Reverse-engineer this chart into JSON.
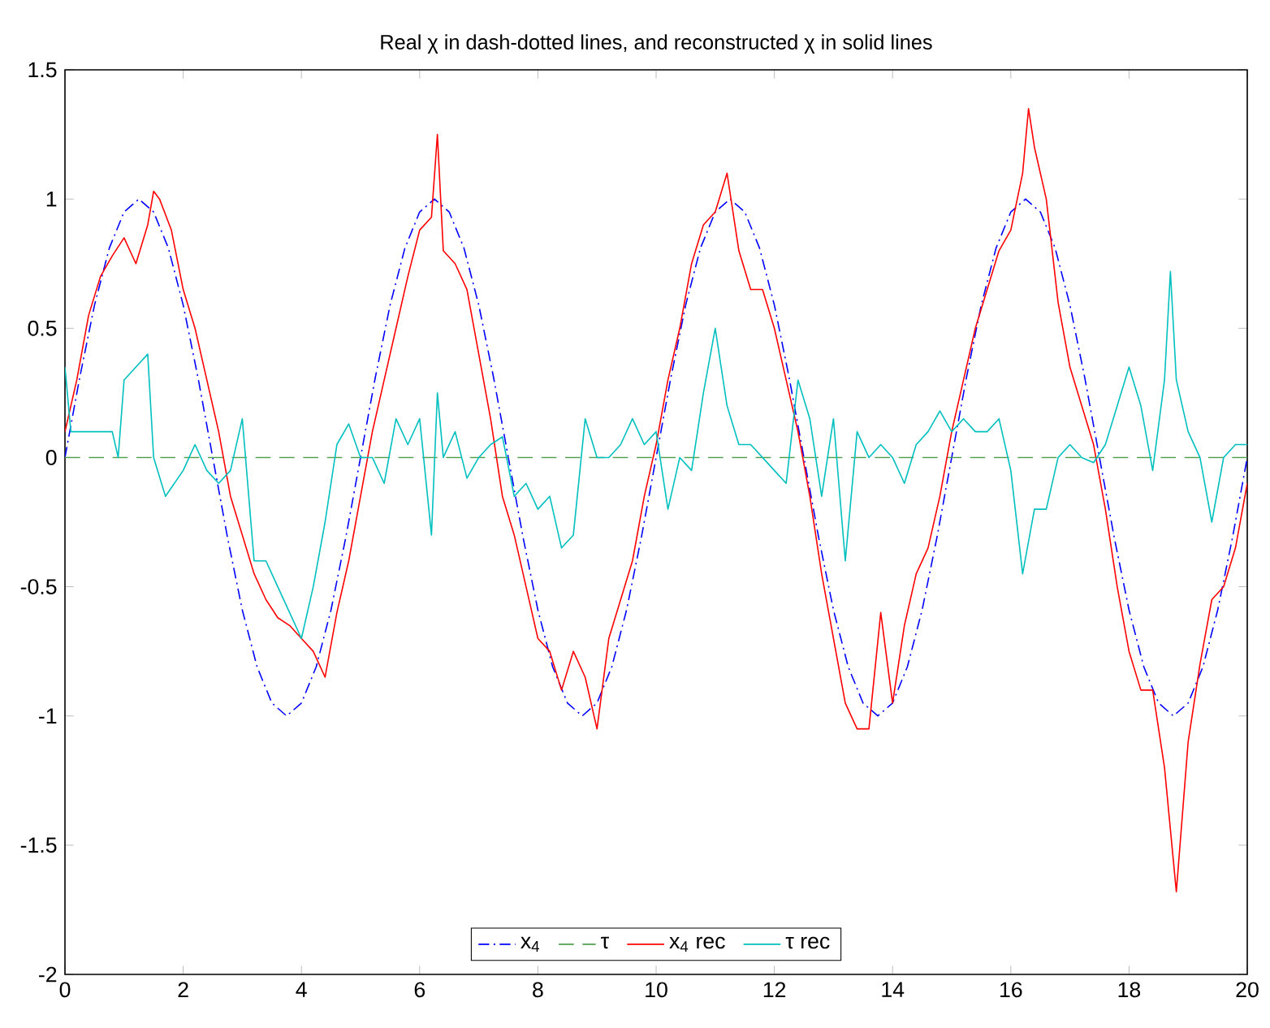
{
  "chart_data": {
    "type": "line",
    "title": "Real χ in dash-dotted lines, and reconstructed χ in solid lines",
    "xlim": [
      0,
      20
    ],
    "ylim": [
      -2,
      1.5
    ],
    "xticks": [
      0,
      2,
      4,
      6,
      8,
      10,
      12,
      14,
      16,
      18,
      20
    ],
    "yticks": [
      -2,
      -1.5,
      -1,
      -0.5,
      0,
      0.5,
      1,
      1.5
    ],
    "grid": false,
    "legend": "bottom",
    "marker": "none",
    "series": [
      {
        "name": "x$_{4}$",
        "color": "#0000ff",
        "line_style": "dashdot",
        "x": [
          0,
          0.25,
          0.5,
          0.75,
          1,
          1.25,
          1.5,
          1.75,
          2,
          2.25,
          2.5,
          2.75,
          3,
          3.25,
          3.5,
          3.75,
          4,
          4.25,
          4.5,
          4.75,
          5,
          5.25,
          5.5,
          5.75,
          6,
          6.25,
          6.5,
          6.75,
          7,
          7.25,
          7.5,
          7.75,
          8,
          8.25,
          8.5,
          8.75,
          9,
          9.25,
          9.5,
          9.75,
          10,
          10.25,
          10.5,
          10.75,
          11,
          11.25,
          11.5,
          11.75,
          12,
          12.25,
          12.5,
          12.75,
          13,
          13.25,
          13.5,
          13.75,
          14,
          14.25,
          14.5,
          14.75,
          15,
          15.25,
          15.5,
          15.75,
          16,
          16.25,
          16.5,
          16.75,
          17,
          17.25,
          17.5,
          17.75,
          18,
          18.25,
          18.5,
          18.75,
          19,
          19.25,
          19.5,
          19.75,
          20
        ],
        "values": [
          0,
          0.31,
          0.59,
          0.81,
          0.95,
          1,
          0.95,
          0.81,
          0.59,
          0.31,
          0,
          -0.31,
          -0.59,
          -0.81,
          -0.95,
          -1,
          -0.95,
          -0.81,
          -0.59,
          -0.31,
          0,
          0.31,
          0.59,
          0.81,
          0.95,
          1,
          0.95,
          0.81,
          0.59,
          0.31,
          0,
          -0.31,
          -0.59,
          -0.81,
          -0.95,
          -1,
          -0.95,
          -0.81,
          -0.59,
          -0.31,
          0,
          0.31,
          0.59,
          0.81,
          0.95,
          1,
          0.95,
          0.81,
          0.59,
          0.31,
          0,
          -0.31,
          -0.59,
          -0.81,
          -0.95,
          -1,
          -0.95,
          -0.81,
          -0.59,
          -0.31,
          0,
          0.31,
          0.59,
          0.81,
          0.95,
          1,
          0.95,
          0.81,
          0.59,
          0.31,
          0,
          -0.31,
          -0.59,
          -0.81,
          -0.95,
          -1,
          -0.95,
          -0.81,
          -0.59,
          -0.31,
          0
        ]
      },
      {
        "name": "τ",
        "color": "#4f9f4f",
        "line_style": "dashed",
        "x": [
          0,
          20
        ],
        "values": [
          0,
          0
        ]
      },
      {
        "name": "x$_{4}$ rec",
        "color": "#ff0000",
        "line_style": "solid",
        "x": [
          0,
          0.2,
          0.4,
          0.6,
          0.8,
          1.0,
          1.2,
          1.4,
          1.5,
          1.6,
          1.8,
          2.0,
          2.2,
          2.4,
          2.6,
          2.8,
          3.0,
          3.2,
          3.4,
          3.6,
          3.8,
          4.0,
          4.2,
          4.4,
          4.6,
          4.8,
          5.0,
          5.2,
          5.4,
          5.6,
          5.8,
          6.0,
          6.2,
          6.3,
          6.4,
          6.6,
          6.8,
          7.0,
          7.2,
          7.4,
          7.6,
          7.8,
          8.0,
          8.2,
          8.4,
          8.6,
          8.8,
          9.0,
          9.2,
          9.4,
          9.6,
          9.8,
          10.0,
          10.2,
          10.4,
          10.6,
          10.8,
          11.0,
          11.2,
          11.4,
          11.6,
          11.8,
          12.0,
          12.2,
          12.4,
          12.6,
          12.8,
          13.0,
          13.2,
          13.4,
          13.6,
          13.8,
          14.0,
          14.2,
          14.4,
          14.6,
          14.8,
          15.0,
          15.2,
          15.4,
          15.6,
          15.8,
          16.0,
          16.2,
          16.3,
          16.4,
          16.6,
          16.8,
          17.0,
          17.2,
          17.4,
          17.6,
          17.8,
          18.0,
          18.2,
          18.4,
          18.6,
          18.8,
          19.0,
          19.2,
          19.4,
          19.6,
          19.8,
          20.0
        ],
        "values": [
          0.1,
          0.3,
          0.55,
          0.7,
          0.78,
          0.85,
          0.75,
          0.9,
          1.03,
          1.0,
          0.88,
          0.65,
          0.5,
          0.3,
          0.1,
          -0.15,
          -0.3,
          -0.45,
          -0.55,
          -0.62,
          -0.65,
          -0.7,
          -0.75,
          -0.85,
          -0.6,
          -0.4,
          -0.15,
          0.1,
          0.3,
          0.5,
          0.7,
          0.88,
          0.93,
          1.25,
          0.8,
          0.75,
          0.65,
          0.4,
          0.15,
          -0.15,
          -0.3,
          -0.5,
          -0.7,
          -0.75,
          -0.9,
          -0.75,
          -0.85,
          -1.05,
          -0.7,
          -0.55,
          -0.4,
          -0.15,
          0.05,
          0.3,
          0.5,
          0.75,
          0.9,
          0.95,
          1.1,
          0.8,
          0.65,
          0.65,
          0.5,
          0.3,
          0.1,
          -0.15,
          -0.45,
          -0.7,
          -0.95,
          -1.05,
          -1.05,
          -0.6,
          -0.95,
          -0.65,
          -0.45,
          -0.35,
          -0.15,
          0.1,
          0.3,
          0.5,
          0.65,
          0.8,
          0.88,
          1.1,
          1.35,
          1.2,
          1.0,
          0.6,
          0.35,
          0.2,
          0.05,
          -0.2,
          -0.5,
          -0.75,
          -0.9,
          -0.9,
          -1.2,
          -1.68,
          -1.1,
          -0.8,
          -0.55,
          -0.5,
          -0.35,
          -0.1
        ]
      },
      {
        "name": "τ rec",
        "color": "#00bfbf",
        "line_style": "solid",
        "x": [
          0,
          0.1,
          0.4,
          0.8,
          0.9,
          1.0,
          1.2,
          1.4,
          1.5,
          1.7,
          2.0,
          2.2,
          2.4,
          2.6,
          2.8,
          3.0,
          3.2,
          3.4,
          3.6,
          3.8,
          4.0,
          4.2,
          4.4,
          4.6,
          4.8,
          5.0,
          5.2,
          5.4,
          5.6,
          5.8,
          6.0,
          6.2,
          6.3,
          6.4,
          6.6,
          6.8,
          7.0,
          7.2,
          7.4,
          7.6,
          7.8,
          8.0,
          8.2,
          8.4,
          8.6,
          8.8,
          9.0,
          9.2,
          9.4,
          9.6,
          9.8,
          10.0,
          10.2,
          10.4,
          10.6,
          10.8,
          11.0,
          11.2,
          11.4,
          11.6,
          11.8,
          12.0,
          12.2,
          12.4,
          12.6,
          12.8,
          13.0,
          13.2,
          13.4,
          13.6,
          13.8,
          14.0,
          14.2,
          14.4,
          14.6,
          14.8,
          15.0,
          15.2,
          15.4,
          15.6,
          15.8,
          16.0,
          16.2,
          16.4,
          16.6,
          16.8,
          17.0,
          17.2,
          17.4,
          17.6,
          17.8,
          18.0,
          18.2,
          18.4,
          18.6,
          18.7,
          18.8,
          19.0,
          19.2,
          19.4,
          19.6,
          19.8,
          20.0
        ],
        "values": [
          0.35,
          0.1,
          0.1,
          0.1,
          0.0,
          0.3,
          0.35,
          0.4,
          0.0,
          -0.15,
          -0.05,
          0.05,
          -0.05,
          -0.1,
          -0.05,
          0.15,
          -0.4,
          -0.4,
          -0.5,
          -0.6,
          -0.7,
          -0.5,
          -0.25,
          0.05,
          0.13,
          0.0,
          0.0,
          -0.1,
          0.15,
          0.05,
          0.15,
          -0.3,
          0.25,
          0.0,
          0.1,
          -0.08,
          0.0,
          0.05,
          0.08,
          -0.15,
          -0.1,
          -0.2,
          -0.15,
          -0.35,
          -0.3,
          0.15,
          0.0,
          0.0,
          0.05,
          0.15,
          0.05,
          0.1,
          -0.2,
          0.0,
          -0.05,
          0.25,
          0.5,
          0.2,
          0.05,
          0.05,
          0.0,
          -0.05,
          -0.1,
          0.3,
          0.15,
          -0.15,
          0.15,
          -0.4,
          0.1,
          0.0,
          0.05,
          0.0,
          -0.1,
          0.05,
          0.1,
          0.18,
          0.1,
          0.15,
          0.1,
          0.1,
          0.15,
          -0.05,
          -0.45,
          -0.2,
          -0.2,
          0.0,
          0.05,
          0.0,
          -0.02,
          0.05,
          0.2,
          0.35,
          0.2,
          -0.05,
          0.3,
          0.72,
          0.3,
          0.1,
          0.0,
          -0.25,
          0.0,
          0.05,
          0.05
        ]
      }
    ]
  }
}
